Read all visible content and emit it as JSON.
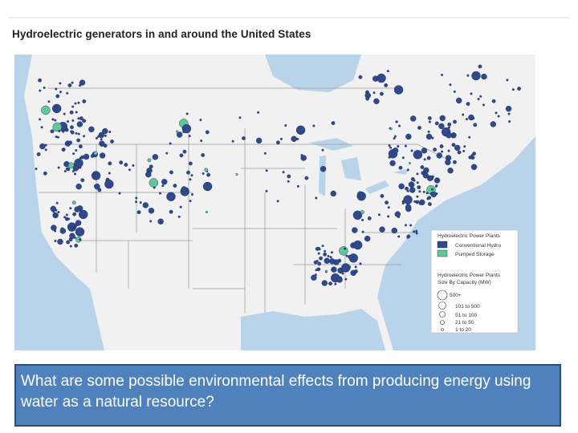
{
  "title": "Hydroelectric  generators  in and around the United  States",
  "legend": {
    "heading": "Hydroelectric Power Plants",
    "types": [
      "Conventional Hydro",
      "Pumped Storage"
    ],
    "size_heading": [
      "Hydroelectric Power Plants",
      "Size By Capacity (MW)"
    ],
    "sizes": [
      "500+",
      "101 to 500",
      "51 to 100",
      "21 to 50",
      "1 to 20"
    ]
  },
  "question": "What are some possible environmental effects from producing energy using water as a natural resource?"
}
